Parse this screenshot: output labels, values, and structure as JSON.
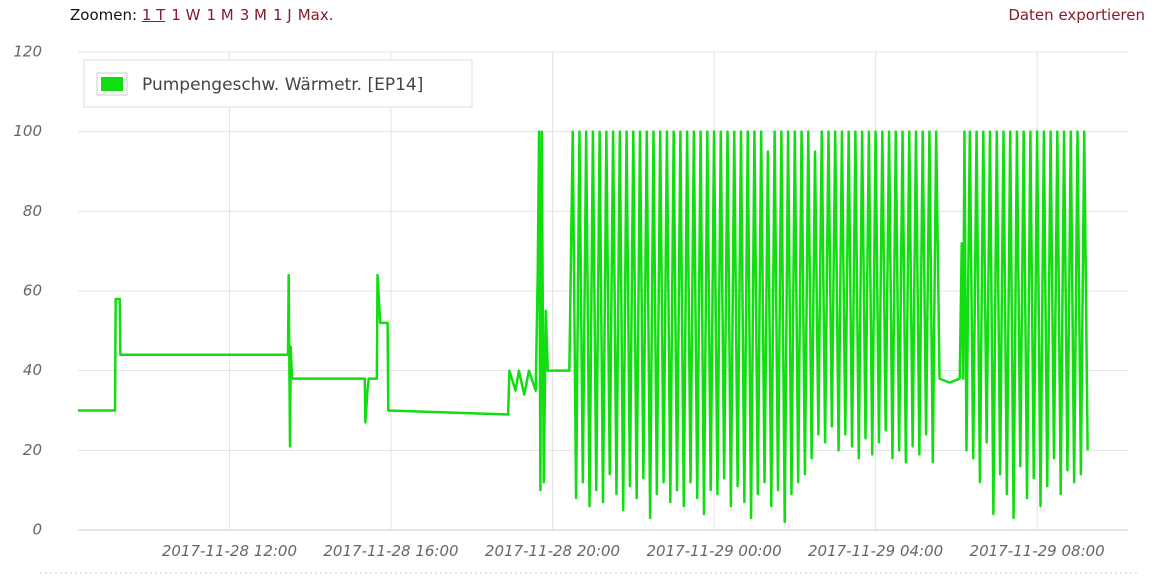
{
  "toolbar": {
    "label": "Zoomen:",
    "zoom_options": [
      "1 T",
      "1 W",
      "1 M",
      "3 M",
      "1 J",
      "Max."
    ],
    "export": "Daten exportieren"
  },
  "chart_data": {
    "type": "line",
    "grid": true,
    "legend": "top-left",
    "xlim": [
      "2017-11-28 08:15",
      "2017-11-29 10:15"
    ],
    "xticks": [
      "2017-11-28 12:00",
      "2017-11-28 16:00",
      "2017-11-28 20:00",
      "2017-11-29 00:00",
      "2017-11-29 04:00",
      "2017-11-29 08:00"
    ],
    "ylim": [
      0,
      120
    ],
    "yticks": [
      0,
      20,
      40,
      60,
      80,
      100,
      120
    ],
    "x": [
      "2017-11-28 08:15",
      "2017-11-28 09:10",
      "2017-11-28 09:11",
      "2017-11-28 09:17",
      "2017-11-28 09:18",
      "2017-11-28 13:27",
      "2017-11-28 13:28",
      "2017-11-28 13:30",
      "2017-11-28 13:31",
      "2017-11-28 13:33",
      "2017-11-28 15:21",
      "2017-11-28 15:22",
      "2017-11-28 15:25",
      "2017-11-28 15:27",
      "2017-11-28 15:39",
      "2017-11-28 15:40",
      "2017-11-28 15:44",
      "2017-11-28 15:55",
      "2017-11-28 15:56",
      "2017-11-28 18:54",
      "2017-11-28 18:56",
      "2017-11-28 19:05",
      "2017-11-28 19:10",
      "2017-11-28 19:18",
      "2017-11-28 19:25",
      "2017-11-28 19:35",
      "2017-11-28 19:38",
      "2017-11-28 19:40",
      "2017-11-28 19:42",
      "2017-11-28 19:44",
      "2017-11-28 19:47",
      "2017-11-28 19:50",
      "2017-11-28 19:53",
      "2017-11-28 20:25",
      "2017-11-28 20:30",
      "2017-11-28 20:35",
      "2017-11-28 20:40",
      "2017-11-28 20:45",
      "2017-11-28 20:50",
      "2017-11-28 20:55",
      "2017-11-28 21:00",
      "2017-11-28 21:05",
      "2017-11-28 21:10",
      "2017-11-28 21:15",
      "2017-11-28 21:20",
      "2017-11-28 21:25",
      "2017-11-28 21:30",
      "2017-11-28 21:35",
      "2017-11-28 21:40",
      "2017-11-28 21:45",
      "2017-11-28 21:50",
      "2017-11-28 21:55",
      "2017-11-28 22:00",
      "2017-11-28 22:05",
      "2017-11-28 22:10",
      "2017-11-28 22:15",
      "2017-11-28 22:20",
      "2017-11-28 22:25",
      "2017-11-28 22:30",
      "2017-11-28 22:35",
      "2017-11-28 22:40",
      "2017-11-28 22:45",
      "2017-11-28 22:50",
      "2017-11-28 22:55",
      "2017-11-28 23:00",
      "2017-11-28 23:05",
      "2017-11-28 23:10",
      "2017-11-28 23:15",
      "2017-11-28 23:20",
      "2017-11-28 23:25",
      "2017-11-28 23:30",
      "2017-11-28 23:35",
      "2017-11-28 23:40",
      "2017-11-28 23:45",
      "2017-11-28 23:50",
      "2017-11-28 23:55",
      "2017-11-29 00:00",
      "2017-11-29 00:05",
      "2017-11-29 00:10",
      "2017-11-29 00:15",
      "2017-11-29 00:20",
      "2017-11-29 00:25",
      "2017-11-29 00:30",
      "2017-11-29 00:35",
      "2017-11-29 00:40",
      "2017-11-29 00:45",
      "2017-11-29 00:50",
      "2017-11-29 00:55",
      "2017-11-29 01:00",
      "2017-11-29 01:05",
      "2017-11-29 01:10",
      "2017-11-29 01:15",
      "2017-11-29 01:20",
      "2017-11-29 01:25",
      "2017-11-29 01:30",
      "2017-11-29 01:35",
      "2017-11-29 01:40",
      "2017-11-29 01:45",
      "2017-11-29 01:50",
      "2017-11-29 01:55",
      "2017-11-29 02:00",
      "2017-11-29 02:05",
      "2017-11-29 02:10",
      "2017-11-29 02:15",
      "2017-11-29 02:20",
      "2017-11-29 02:25",
      "2017-11-29 02:30",
      "2017-11-29 02:35",
      "2017-11-29 02:40",
      "2017-11-29 02:45",
      "2017-11-29 02:50",
      "2017-11-29 02:55",
      "2017-11-29 03:00",
      "2017-11-29 03:05",
      "2017-11-29 03:10",
      "2017-11-29 03:15",
      "2017-11-29 03:20",
      "2017-11-29 03:25",
      "2017-11-29 03:30",
      "2017-11-29 03:35",
      "2017-11-29 03:40",
      "2017-11-29 03:45",
      "2017-11-29 03:50",
      "2017-11-29 03:55",
      "2017-11-29 04:00",
      "2017-11-29 04:05",
      "2017-11-29 04:10",
      "2017-11-29 04:15",
      "2017-11-29 04:20",
      "2017-11-29 04:25",
      "2017-11-29 04:30",
      "2017-11-29 04:35",
      "2017-11-29 04:40",
      "2017-11-29 04:45",
      "2017-11-29 04:50",
      "2017-11-29 04:55",
      "2017-11-29 05:00",
      "2017-11-29 05:05",
      "2017-11-29 05:10",
      "2017-11-29 05:15",
      "2017-11-29 05:20",
      "2017-11-29 05:25",
      "2017-11-29 05:30",
      "2017-11-29 05:35",
      "2017-11-29 05:50",
      "2017-11-29 06:05",
      "2017-11-29 06:08",
      "2017-11-29 06:10",
      "2017-11-29 06:12",
      "2017-11-29 06:15",
      "2017-11-29 06:20",
      "2017-11-29 06:25",
      "2017-11-29 06:30",
      "2017-11-29 06:35",
      "2017-11-29 06:40",
      "2017-11-29 06:45",
      "2017-11-29 06:50",
      "2017-11-29 06:55",
      "2017-11-29 07:00",
      "2017-11-29 07:05",
      "2017-11-29 07:10",
      "2017-11-29 07:15",
      "2017-11-29 07:20",
      "2017-11-29 07:25",
      "2017-11-29 07:30",
      "2017-11-29 07:35",
      "2017-11-29 07:40",
      "2017-11-29 07:45",
      "2017-11-29 07:50",
      "2017-11-29 07:55",
      "2017-11-29 08:00",
      "2017-11-29 08:05",
      "2017-11-29 08:10",
      "2017-11-29 08:15",
      "2017-11-29 08:20",
      "2017-11-29 08:25",
      "2017-11-29 08:30",
      "2017-11-29 08:35",
      "2017-11-29 08:40",
      "2017-11-29 08:45",
      "2017-11-29 08:50",
      "2017-11-29 08:55",
      "2017-11-29 09:00",
      "2017-11-29 09:05",
      "2017-11-29 09:10",
      "2017-11-29 09:15"
    ],
    "series": [
      {
        "name": "Pumpengeschw. Wärmetr. [EP14]",
        "color": "#11dd11",
        "values": [
          30,
          30,
          58,
          58,
          44,
          44,
          64,
          21,
          46,
          38,
          38,
          27,
          35,
          38,
          38,
          64,
          52,
          52,
          30,
          29,
          40,
          35,
          40,
          34,
          40,
          35,
          64,
          100,
          10,
          100,
          12,
          55,
          40,
          40,
          100,
          8,
          100,
          12,
          100,
          6,
          100,
          10,
          100,
          7,
          100,
          14,
          100,
          9,
          100,
          5,
          100,
          11,
          100,
          8,
          100,
          13,
          100,
          3,
          100,
          9,
          100,
          12,
          100,
          7,
          100,
          10,
          100,
          6,
          100,
          12,
          100,
          8,
          100,
          4,
          100,
          10,
          100,
          9,
          100,
          13,
          100,
          6,
          100,
          11,
          100,
          7,
          100,
          3,
          100,
          9,
          100,
          12,
          95,
          6,
          100,
          10,
          100,
          2,
          100,
          9,
          100,
          12,
          100,
          14,
          100,
          18,
          95,
          24,
          100,
          22,
          100,
          26,
          100,
          20,
          100,
          24,
          100,
          21,
          100,
          18,
          100,
          23,
          100,
          19,
          100,
          22,
          100,
          25,
          100,
          18,
          100,
          20,
          100,
          17,
          100,
          21,
          100,
          19,
          100,
          24,
          100,
          17,
          100,
          38,
          37,
          38,
          72,
          38,
          100,
          20,
          100,
          18,
          100,
          12,
          100,
          22,
          100,
          4,
          100,
          14,
          100,
          9,
          100,
          3,
          100,
          16,
          100,
          8,
          100,
          13,
          100,
          6,
          100,
          11,
          100,
          18,
          100,
          9,
          100,
          15,
          100,
          12,
          100,
          14,
          100,
          20
        ]
      }
    ]
  }
}
